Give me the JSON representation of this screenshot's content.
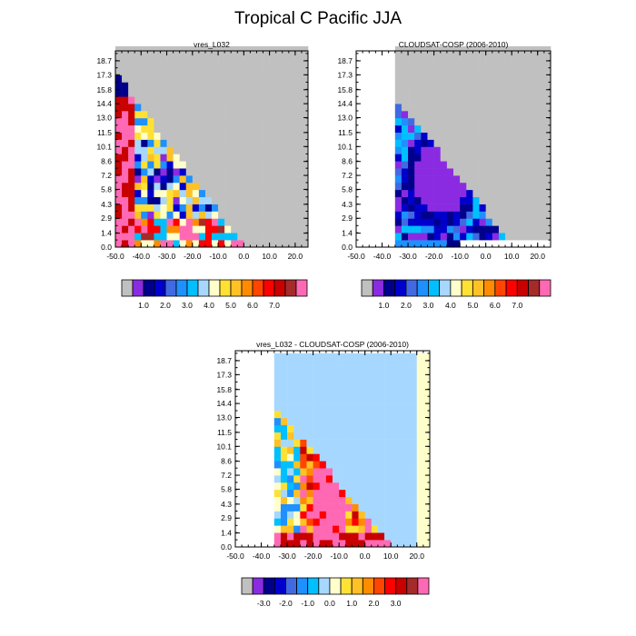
{
  "figure": {
    "title": "Tropical C Pacific JJA"
  },
  "chart_data": [
    {
      "type": "heatmap",
      "id": "model",
      "title": "vres_L032",
      "xlabel": "",
      "ylabel": "",
      "xlim": [
        -50,
        25
      ],
      "ylim": [
        0,
        19.7
      ],
      "xticks": [
        -50,
        -40,
        -30,
        -20,
        -10,
        0,
        10,
        20
      ],
      "xtick_labels": [
        "-50.0",
        "-40.0",
        "-30.0",
        "-20.0",
        "-10.0",
        "0.0",
        "10.0",
        "20.0"
      ],
      "yticks": [
        0,
        1.4,
        2.9,
        4.3,
        5.8,
        7.2,
        8.6,
        10.1,
        11.5,
        13.0,
        14.4,
        15.8,
        17.3,
        18.7
      ],
      "ytick_labels": [
        "0.0",
        "1.4",
        "2.9",
        "4.3",
        "5.8",
        "7.2",
        "8.6",
        "10.1",
        "11.5",
        "13.0",
        "14.4",
        "15.8",
        "17.3",
        "18.7"
      ],
      "colorbar": {
        "colors": [
          "#c0c0c0",
          "#8a2be2",
          "#00008b",
          "#0000cd",
          "#4169e1",
          "#1e90ff",
          "#00bfff",
          "#a6d8ff",
          "#ffffcc",
          "#ffe135",
          "#ffc125",
          "#ff8c00",
          "#ff4500",
          "#ff0000",
          "#c80000",
          "#a52a2a",
          "#ff69b4"
        ],
        "labels": [
          "1.0",
          "2.0",
          "3.0",
          "4.0",
          "5.0",
          "6.0",
          "7.0"
        ],
        "label_positions": [
          2,
          4,
          6,
          8,
          10,
          12,
          14
        ]
      }
    },
    {
      "type": "heatmap",
      "id": "obs",
      "title": "CLOUDSAT-COSP (2006-2010)",
      "xlabel": "",
      "ylabel": "",
      "xlim": [
        -50,
        25
      ],
      "ylim": [
        0,
        19.7
      ],
      "xticks": [
        -50,
        -40,
        -30,
        -20,
        -10,
        0,
        10,
        20
      ],
      "xtick_labels": [
        "-50.0",
        "-40.0",
        "-30.0",
        "-20.0",
        "-10.0",
        "0.0",
        "10.0",
        "20.0"
      ],
      "yticks": [
        0,
        1.4,
        2.9,
        4.3,
        5.8,
        7.2,
        8.6,
        10.1,
        11.5,
        13.0,
        14.4,
        15.8,
        17.3,
        18.7
      ],
      "ytick_labels": [
        "0.0",
        "1.4",
        "2.9",
        "4.3",
        "5.8",
        "7.2",
        "8.6",
        "10.1",
        "11.5",
        "13.0",
        "14.4",
        "15.8",
        "17.3",
        "18.7"
      ],
      "colorbar": {
        "colors": [
          "#c0c0c0",
          "#8a2be2",
          "#00008b",
          "#0000cd",
          "#4169e1",
          "#1e90ff",
          "#00bfff",
          "#a6d8ff",
          "#ffffcc",
          "#ffe135",
          "#ffc125",
          "#ff8c00",
          "#ff4500",
          "#ff0000",
          "#c80000",
          "#a52a2a",
          "#ff69b4"
        ],
        "labels": [
          "1.0",
          "2.0",
          "3.0",
          "4.0",
          "5.0",
          "6.0",
          "7.0"
        ],
        "label_positions": [
          2,
          4,
          6,
          8,
          10,
          12,
          14
        ]
      }
    },
    {
      "type": "heatmap",
      "id": "diff",
      "title": "vres_L032 - CLOUDSAT-COSP (2006-2010)",
      "xlabel": "",
      "ylabel": "",
      "xlim": [
        -50,
        25
      ],
      "ylim": [
        0,
        19.7
      ],
      "xticks": [
        -50,
        -40,
        -30,
        -20,
        -10,
        0,
        10,
        20
      ],
      "xtick_labels": [
        "-50.0",
        "-40.0",
        "-30.0",
        "-20.0",
        "-10.0",
        "0.0",
        "10.0",
        "20.0"
      ],
      "yticks": [
        0,
        1.4,
        2.9,
        4.3,
        5.8,
        7.2,
        8.6,
        10.1,
        11.5,
        13.0,
        14.4,
        15.8,
        17.3,
        18.7
      ],
      "ytick_labels": [
        "0.0",
        "1.4",
        "2.9",
        "4.3",
        "5.8",
        "7.2",
        "8.6",
        "10.1",
        "11.5",
        "13.0",
        "14.4",
        "15.8",
        "17.3",
        "18.7"
      ],
      "colorbar": {
        "colors": [
          "#c0c0c0",
          "#8a2be2",
          "#00008b",
          "#0000cd",
          "#4169e1",
          "#1e90ff",
          "#00bfff",
          "#a6d8ff",
          "#ffffcc",
          "#ffe135",
          "#ffc125",
          "#ff8c00",
          "#ff4500",
          "#ff0000",
          "#c80000",
          "#a52a2a",
          "#ff69b4"
        ],
        "labels": [
          "-3.0",
          "-2.0",
          "-1.0",
          "0.0",
          "1.0",
          "2.0",
          "3.0"
        ],
        "label_positions": [
          2,
          4,
          6,
          8,
          10,
          12,
          14
        ]
      }
    }
  ]
}
